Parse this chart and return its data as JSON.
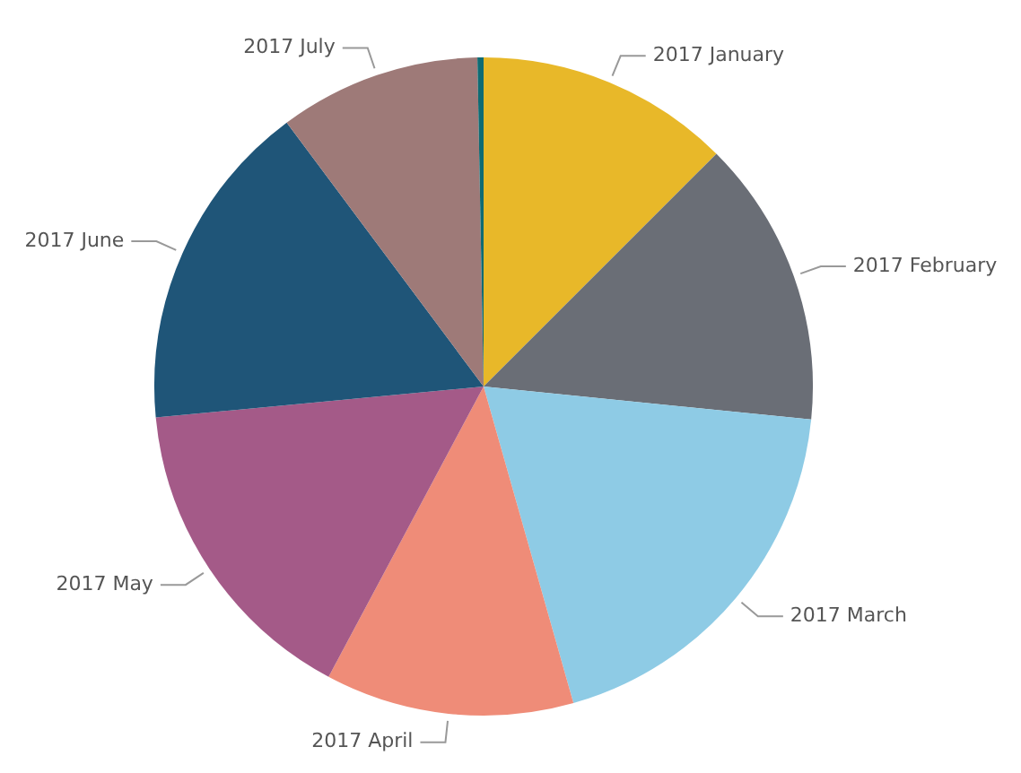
{
  "chart_data": {
    "type": "pie",
    "categories": [
      "2017 January",
      "2017 February",
      "2017 March",
      "2017 April",
      "2017 May",
      "2017 June",
      "2017 July",
      null
    ],
    "values": [
      12.5,
      14.1,
      19.0,
      12.2,
      15.7,
      16.3,
      9.9,
      0.3
    ],
    "colors": [
      "#e8b829",
      "#6a6e76",
      "#8ecbe5",
      "#ef8c78",
      "#a45a88",
      "#1f5578",
      "#9e7a78",
      "#0f6b73"
    ],
    "legend": false
  }
}
